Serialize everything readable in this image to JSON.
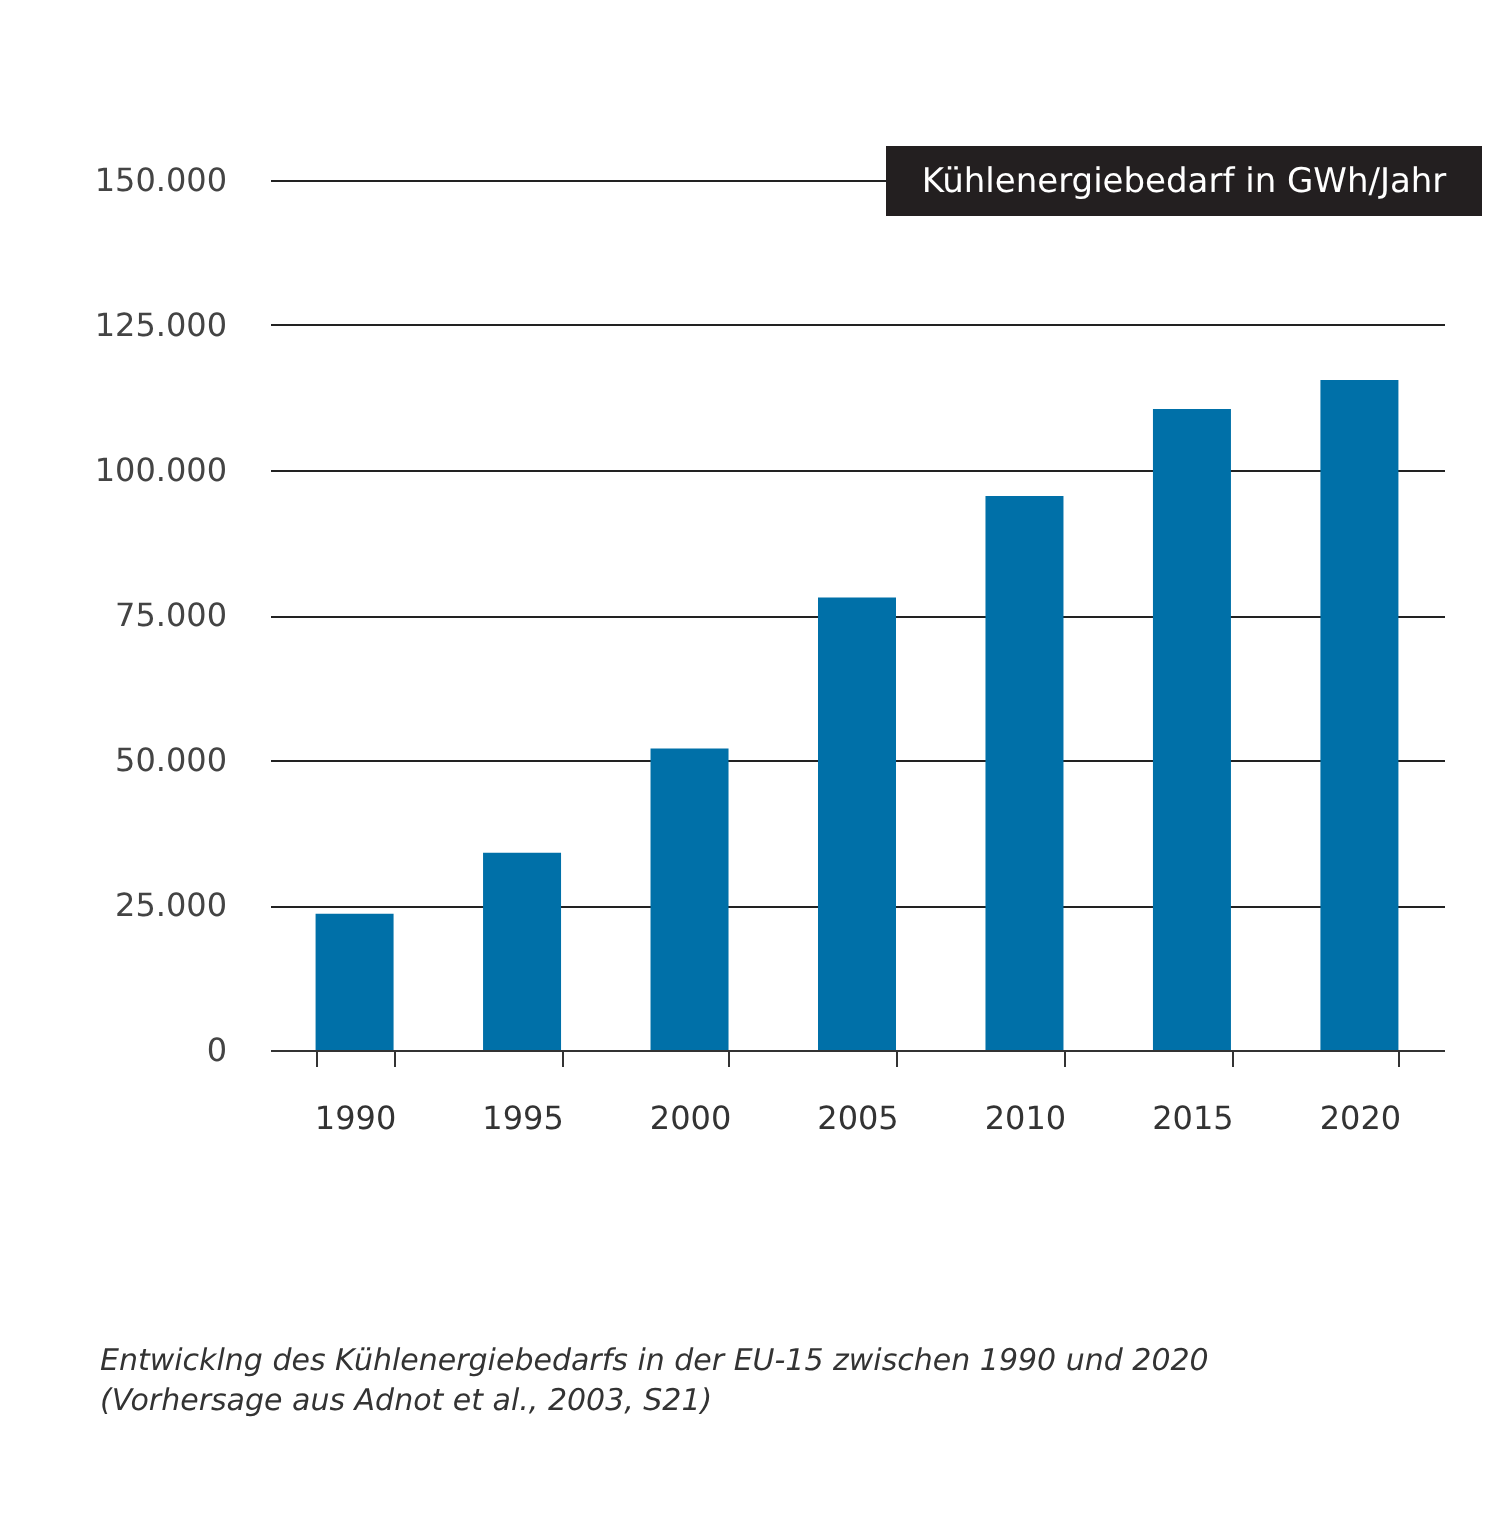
{
  "chart_data": {
    "type": "bar",
    "ylabel": "Kühlenergiebedarf in GWh/Jahr",
    "categories": [
      "1990",
      "1995",
      "2000",
      "2005",
      "2010",
      "2015",
      "2020"
    ],
    "values": [
      23500,
      34000,
      52000,
      78000,
      95500,
      110500,
      115500
    ],
    "color": "#0070a8",
    "ylim": [
      0,
      150000
    ],
    "yticks": [
      0,
      {
        "value": 25000,
        "label": "25.000"
      },
      {
        "value": 50000,
        "label": "50.000"
      },
      {
        "value": 75000,
        "label": "75.000"
      },
      {
        "value": 100000,
        "label": "100.000"
      },
      {
        "value": 125000,
        "label": "125.000"
      },
      {
        "value": 150000,
        "label": "150.000"
      }
    ],
    "grid": "y",
    "annotations": [
      "Entwicklng des Kühlenergiebedarfs in der EU-15 zwischen 1990 und 2020",
      "(Vorhersage aus Adnot et al., 2003, S21)"
    ]
  }
}
